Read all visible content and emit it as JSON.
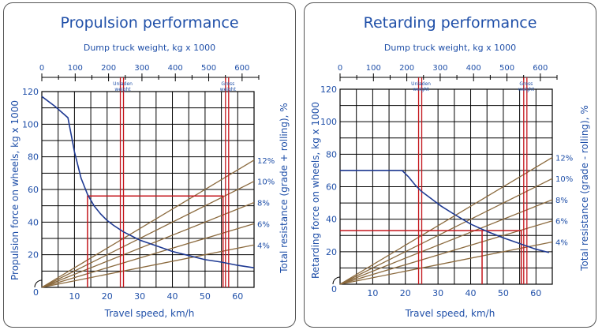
{
  "chart_data": [
    {
      "type": "line",
      "title": "Propulsion performance",
      "xlabel": "Travel speed, km/h",
      "x2label": "Dump truck weight, kg x 1000",
      "ylabel": "Propulsion force on wheels, kg x 1000",
      "y2label": "Total resistance (grade + rolling), %",
      "xlim": [
        0,
        65
      ],
      "ylim": [
        0,
        120
      ],
      "x_ticks": [
        10,
        20,
        30,
        40,
        50,
        60
      ],
      "y_ticks": [
        20,
        40,
        60,
        80,
        100,
        120
      ],
      "y_zero_label": "0",
      "x2lim": [
        0,
        650
      ],
      "x2_ticks": [
        0,
        100,
        200,
        300,
        400,
        500,
        600
      ],
      "weight_markers": [
        {
          "label": "Unladen weight",
          "weight": 240
        },
        {
          "label": "Gross weight",
          "weight": 555
        }
      ],
      "resistance_lines": [
        {
          "label": "12%",
          "end_y": 78
        },
        {
          "label": "10%",
          "end_y": 65
        },
        {
          "label": "8%",
          "end_y": 52
        },
        {
          "label": "6%",
          "end_y": 39
        },
        {
          "label": "4%",
          "end_y": 26
        }
      ],
      "series": [
        {
          "x": [
            0,
            4,
            8,
            10,
            12,
            14,
            16,
            18,
            20,
            22,
            25,
            30,
            35,
            40,
            45,
            50,
            55,
            60,
            65
          ],
          "y": [
            117,
            111,
            104,
            83,
            67,
            57,
            50,
            45,
            41,
            38,
            34,
            29,
            25.5,
            22,
            19.5,
            17,
            15.5,
            13.5,
            12
          ]
        }
      ],
      "example_path": [
        {
          "x": 55.5,
          "y": 0
        },
        {
          "x": 55.5,
          "y": 56
        },
        {
          "x": 14,
          "y": 56
        },
        {
          "x": 14,
          "y": 0
        }
      ],
      "colors": {
        "curve": "#1f3a93",
        "grid": "#000000",
        "marker": "#c4161c",
        "resistance": "#8b6a3e",
        "text": "#1f4fa8"
      }
    },
    {
      "type": "line",
      "title": "Retarding performance",
      "xlabel": "Travel speed, km/h",
      "x2label": "Dump truck weight, kg x 1000",
      "ylabel": "Retarding force on wheels, kg x 1000",
      "y2label": "Total resistance (grade - rolling), %",
      "xlim": [
        0,
        65
      ],
      "ylim": [
        0,
        120
      ],
      "x_ticks": [
        10,
        20,
        30,
        40,
        50,
        60
      ],
      "y_ticks": [
        20,
        40,
        60,
        80,
        100,
        120
      ],
      "y_zero_label": "0",
      "x2lim": [
        0,
        650
      ],
      "x2_ticks": [
        0,
        100,
        200,
        300,
        400,
        500,
        600
      ],
      "weight_markers": [
        {
          "label": "Unladen weight",
          "weight": 240
        },
        {
          "label": "Gross weight",
          "weight": 555
        }
      ],
      "resistance_lines": [
        {
          "label": "12%",
          "end_y": 78
        },
        {
          "label": "10%",
          "end_y": 65
        },
        {
          "label": "8%",
          "end_y": 52
        },
        {
          "label": "6%",
          "end_y": 39
        },
        {
          "label": "4%",
          "end_y": 26
        }
      ],
      "series": [
        {
          "x": [
            0,
            10,
            19,
            21,
            23,
            25,
            28,
            31,
            35,
            40,
            45,
            50,
            55,
            60,
            64
          ],
          "y": [
            70,
            70,
            70,
            66,
            61,
            57,
            52.5,
            48,
            43,
            37,
            32.5,
            28.5,
            25,
            21.5,
            19.5
          ]
        }
      ],
      "example_path": [
        {
          "x": 55.5,
          "y": 0
        },
        {
          "x": 55.5,
          "y": 33
        },
        {
          "x": 0,
          "y": 33
        },
        {
          "x": 43.5,
          "y": 33
        },
        {
          "x": 43.5,
          "y": 0
        }
      ],
      "colors": {
        "curve": "#1f3a93",
        "grid": "#000000",
        "marker": "#c4161c",
        "resistance": "#8b6a3e",
        "text": "#1f4fa8"
      }
    }
  ]
}
